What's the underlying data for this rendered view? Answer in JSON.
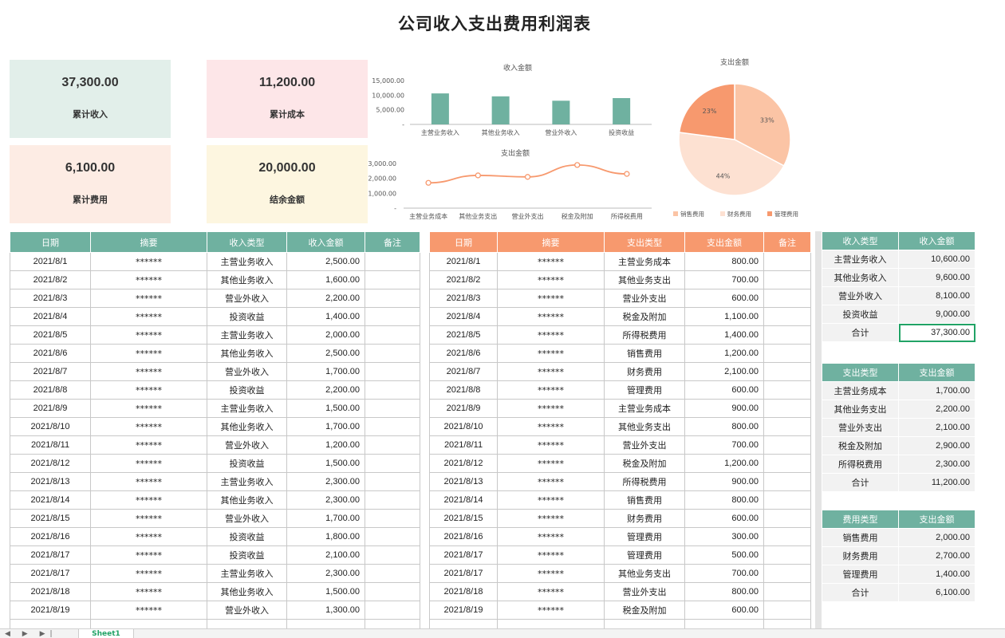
{
  "title": "公司收入支出费用利润表",
  "cards": [
    {
      "value": "37,300.00",
      "label": "累计收入"
    },
    {
      "value": "11,200.00",
      "label": "累计成本"
    },
    {
      "value": "6,100.00",
      "label": "累计费用"
    },
    {
      "value": "20,000.00",
      "label": "结余金额"
    }
  ],
  "colors": {
    "green": "#6fb1a0",
    "orange": "#f7996e",
    "pie1": "#fbc4a5",
    "pie2": "#fde1d2",
    "pie3": "#f7996e"
  },
  "chart_data": [
    {
      "type": "bar",
      "title": "收入金额",
      "categories": [
        "主营业务收入",
        "其他业务收入",
        "营业外收入",
        "投资收益"
      ],
      "values": [
        10600,
        9600,
        8100,
        9000
      ],
      "ylim": [
        0,
        15000
      ],
      "yticks": [
        "15,000.00",
        "10,000.00",
        "5,000.00",
        "-"
      ],
      "ytick_values": [
        15000,
        10000,
        5000,
        0
      ]
    },
    {
      "type": "line",
      "title": "支出金额",
      "categories": [
        "主营业务成本",
        "其他业务支出",
        "营业外支出",
        "税金及附加",
        "所得税费用"
      ],
      "values": [
        1700,
        2200,
        2100,
        2900,
        2300
      ],
      "ylim": [
        0,
        3000
      ],
      "yticks": [
        "3,000.00",
        "2,000.00",
        "1,000.00",
        "-"
      ],
      "ytick_values": [
        3000,
        2000,
        1000,
        0
      ]
    },
    {
      "type": "pie",
      "title": "支出金额",
      "categories": [
        "销售费用",
        "财务费用",
        "管理费用"
      ],
      "values": [
        2000,
        2700,
        1400
      ],
      "labels": [
        "33%",
        "44%",
        "23%"
      ]
    }
  ],
  "income_table": {
    "headers": [
      "日期",
      "摘要",
      "收入类型",
      "收入金额",
      "备注"
    ],
    "rows": [
      [
        "2021/8/1",
        "******",
        "主营业务收入",
        "2,500.00",
        ""
      ],
      [
        "2021/8/2",
        "******",
        "其他业务收入",
        "1,600.00",
        ""
      ],
      [
        "2021/8/3",
        "******",
        "营业外收入",
        "2,200.00",
        ""
      ],
      [
        "2021/8/4",
        "******",
        "投资收益",
        "1,400.00",
        ""
      ],
      [
        "2021/8/5",
        "******",
        "主营业务收入",
        "2,000.00",
        ""
      ],
      [
        "2021/8/6",
        "******",
        "其他业务收入",
        "2,500.00",
        ""
      ],
      [
        "2021/8/7",
        "******",
        "营业外收入",
        "1,700.00",
        ""
      ],
      [
        "2021/8/8",
        "******",
        "投资收益",
        "2,200.00",
        ""
      ],
      [
        "2021/8/9",
        "******",
        "主营业务收入",
        "1,500.00",
        ""
      ],
      [
        "2021/8/10",
        "******",
        "其他业务收入",
        "1,700.00",
        ""
      ],
      [
        "2021/8/11",
        "******",
        "营业外收入",
        "1,200.00",
        ""
      ],
      [
        "2021/8/12",
        "******",
        "投资收益",
        "1,500.00",
        ""
      ],
      [
        "2021/8/13",
        "******",
        "主营业务收入",
        "2,300.00",
        ""
      ],
      [
        "2021/8/14",
        "******",
        "其他业务收入",
        "2,300.00",
        ""
      ],
      [
        "2021/8/15",
        "******",
        "营业外收入",
        "1,700.00",
        ""
      ],
      [
        "2021/8/16",
        "******",
        "投资收益",
        "1,800.00",
        ""
      ],
      [
        "2021/8/17",
        "******",
        "投资收益",
        "2,100.00",
        ""
      ],
      [
        "2021/8/17",
        "******",
        "主营业务收入",
        "2,300.00",
        ""
      ],
      [
        "2021/8/18",
        "******",
        "其他业务收入",
        "1,500.00",
        ""
      ],
      [
        "2021/8/19",
        "******",
        "营业外收入",
        "1,300.00",
        ""
      ]
    ]
  },
  "expense_table": {
    "headers": [
      "日期",
      "摘要",
      "支出类型",
      "支出金额",
      "备注"
    ],
    "rows": [
      [
        "2021/8/1",
        "******",
        "主营业务成本",
        "800.00",
        ""
      ],
      [
        "2021/8/2",
        "******",
        "其他业务支出",
        "700.00",
        ""
      ],
      [
        "2021/8/3",
        "******",
        "营业外支出",
        "600.00",
        ""
      ],
      [
        "2021/8/4",
        "******",
        "税金及附加",
        "1,100.00",
        ""
      ],
      [
        "2021/8/5",
        "******",
        "所得税费用",
        "1,400.00",
        ""
      ],
      [
        "2021/8/6",
        "******",
        "销售费用",
        "1,200.00",
        ""
      ],
      [
        "2021/8/7",
        "******",
        "财务费用",
        "2,100.00",
        ""
      ],
      [
        "2021/8/8",
        "******",
        "管理费用",
        "600.00",
        ""
      ],
      [
        "2021/8/9",
        "******",
        "主营业务成本",
        "900.00",
        ""
      ],
      [
        "2021/8/10",
        "******",
        "其他业务支出",
        "800.00",
        ""
      ],
      [
        "2021/8/11",
        "******",
        "营业外支出",
        "700.00",
        ""
      ],
      [
        "2021/8/12",
        "******",
        "税金及附加",
        "1,200.00",
        ""
      ],
      [
        "2021/8/13",
        "******",
        "所得税费用",
        "900.00",
        ""
      ],
      [
        "2021/8/14",
        "******",
        "销售费用",
        "800.00",
        ""
      ],
      [
        "2021/8/15",
        "******",
        "财务费用",
        "600.00",
        ""
      ],
      [
        "2021/8/16",
        "******",
        "管理费用",
        "300.00",
        ""
      ],
      [
        "2021/8/17",
        "******",
        "管理费用",
        "500.00",
        ""
      ],
      [
        "2021/8/17",
        "******",
        "其他业务支出",
        "700.00",
        ""
      ],
      [
        "2021/8/18",
        "******",
        "营业外支出",
        "800.00",
        ""
      ],
      [
        "2021/8/19",
        "******",
        "税金及附加",
        "600.00",
        ""
      ]
    ]
  },
  "income_summary": {
    "headers": [
      "收入类型",
      "收入金额"
    ],
    "rows": [
      [
        "主营业务收入",
        "10,600.00"
      ],
      [
        "其他业务收入",
        "9,600.00"
      ],
      [
        "营业外收入",
        "8,100.00"
      ],
      [
        "投资收益",
        "9,000.00"
      ],
      [
        "合计",
        "37,300.00"
      ]
    ]
  },
  "expense_summary": {
    "headers": [
      "支出类型",
      "支出金额"
    ],
    "rows": [
      [
        "主营业务成本",
        "1,700.00"
      ],
      [
        "其他业务支出",
        "2,200.00"
      ],
      [
        "营业外支出",
        "2,100.00"
      ],
      [
        "税金及附加",
        "2,900.00"
      ],
      [
        "所得税费用",
        "2,300.00"
      ],
      [
        "合计",
        "11,200.00"
      ]
    ]
  },
  "fee_summary": {
    "headers": [
      "费用类型",
      "支出金额"
    ],
    "rows": [
      [
        "销售费用",
        "2,000.00"
      ],
      [
        "财务费用",
        "2,700.00"
      ],
      [
        "管理费用",
        "1,400.00"
      ],
      [
        "合计",
        "6,100.00"
      ]
    ]
  },
  "footer": {
    "sheet_tab": "Sheet1",
    "nav": "◀ ▶ ▶|"
  }
}
